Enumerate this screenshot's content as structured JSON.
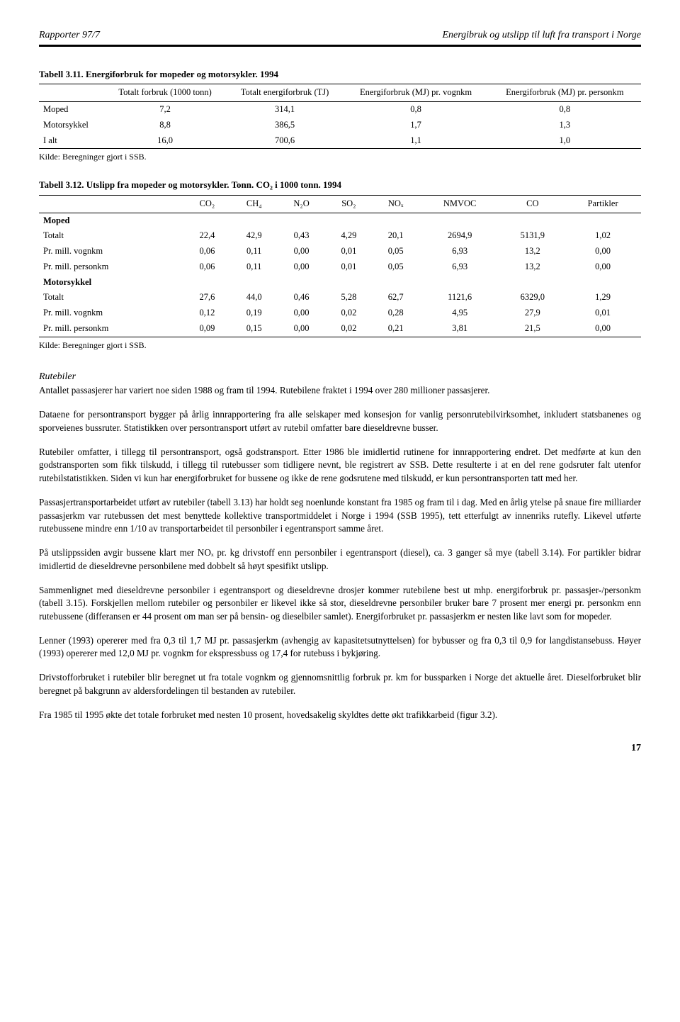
{
  "header": {
    "left": "Rapporter 97/7",
    "right": "Energibruk og utslipp til luft fra transport i Norge"
  },
  "table1": {
    "title": "Tabell 3.11. Energiforbruk for mopeder og motorsykler. 1994",
    "headers": [
      "",
      "Totalt forbruk (1000 tonn)",
      "Totalt energiforbruk (TJ)",
      "Energiforbruk (MJ) pr. vognkm",
      "Energiforbruk (MJ) pr. personkm"
    ],
    "rows": [
      [
        "Moped",
        "7,2",
        "314,1",
        "0,8",
        "0,8"
      ],
      [
        "Motorsykkel",
        "8,8",
        "386,5",
        "1,7",
        "1,3"
      ],
      [
        "I alt",
        "16,0",
        "700,6",
        "1,1",
        "1,0"
      ]
    ],
    "source": "Kilde: Beregninger gjort i SSB."
  },
  "table2": {
    "title": "Tabell 3.12. Utslipp fra mopeder og motorsykler. Tonn. CO₂ i 1000 tonn. 1994",
    "headers": [
      "",
      "CO₂",
      "CH₄",
      "N₂O",
      "SO₂",
      "NOₓ",
      "NMVOC",
      "CO",
      "Partikler"
    ],
    "rows": [
      [
        "Moped",
        "",
        "",
        "",
        "",
        "",
        "",
        "",
        ""
      ],
      [
        "Totalt",
        "22,4",
        "42,9",
        "0,43",
        "4,29",
        "20,1",
        "2694,9",
        "5131,9",
        "1,02"
      ],
      [
        "Pr. mill. vognkm",
        "0,06",
        "0,11",
        "0,00",
        "0,01",
        "0,05",
        "6,93",
        "13,2",
        "0,00"
      ],
      [
        "Pr. mill. personkm",
        "0,06",
        "0,11",
        "0,00",
        "0,01",
        "0,05",
        "6,93",
        "13,2",
        "0,00"
      ],
      [
        "Motorsykkel",
        "",
        "",
        "",
        "",
        "",
        "",
        "",
        ""
      ],
      [
        "Totalt",
        "27,6",
        "44,0",
        "0,46",
        "5,28",
        "62,7",
        "1121,6",
        "6329,0",
        "1,29"
      ],
      [
        "Pr. mill. vognkm",
        "0,12",
        "0,19",
        "0,00",
        "0,02",
        "0,28",
        "4,95",
        "27,9",
        "0,01"
      ],
      [
        "Pr. mill. personkm",
        "0,09",
        "0,15",
        "0,00",
        "0,02",
        "0,21",
        "3,81",
        "21,5",
        "0,00"
      ]
    ],
    "bold_rows": [
      0,
      4
    ],
    "source": "Kilde: Beregninger gjort i SSB."
  },
  "section_heading": "Rutebiler",
  "paragraphs": [
    "Antallet passasjerer har variert noe siden 1988 og fram til 1994. Rutebilene fraktet i 1994 over 280 millioner passasjerer.",
    "Dataene for persontransport bygger på årlig innrapportering fra alle selskaper med konsesjon for vanlig personrutebilvirksomhet, inkludert statsbanenes og sporveienes bussruter. Statistikken over persontransport utført av rutebil omfatter bare dieseldrevne busser.",
    "Rutebiler omfatter, i tillegg til persontransport, også godstransport. Etter 1986 ble imidlertid rutinene for innrapportering endret. Det medførte at kun den godstransporten som fikk tilskudd, i tillegg til rutebusser som tidligere nevnt, ble registrert av SSB. Dette resulterte i at en del rene godsruter falt utenfor rutebilstatistikken. Siden vi kun har energiforbruket for bussene og ikke de rene godsrutene med tilskudd, er kun persontransporten tatt med her.",
    "Passasjertransportarbeidet utført av rutebiler (tabell 3.13) har holdt seg noenlunde konstant fra 1985 og fram til i dag. Med en årlig ytelse på snaue fire milliarder passasjerkm var rutebussen det mest benyttede kollektive transportmiddelet i Norge i 1994 (SSB 1995), tett etterfulgt av innenriks rutefly. Likevel utførte rutebussene mindre enn 1/10 av transportarbeidet til personbiler i egentransport samme året.",
    "På utslippssiden avgir bussene klart mer NOₓ pr. kg drivstoff enn personbiler i egentransport (diesel), ca. 3 ganger så mye (tabell 3.14). For partikler bidrar imidlertid de dieseldrevne personbilene med dobbelt så høyt spesifikt utslipp.",
    "Sammenlignet med dieseldrevne personbiler i egentransport og dieseldrevne drosjer kommer rutebilene best ut mhp. energiforbruk pr. passasjer-/personkm (tabell 3.15). Forskjellen mellom rutebiler og personbiler er likevel ikke så stor, dieseldrevne personbiler bruker bare 7 prosent mer energi pr. personkm enn rutebussene (differansen er 44 prosent om man ser på bensin- og dieselbiler samlet). Energiforbruket pr. passasjerkm er nesten like lavt som for mopeder.",
    "Lenner (1993) opererer med fra 0,3 til 1,7 MJ pr. passasjerkm (avhengig av kapasitetsutnyttelsen) for bybusser og fra 0,3 til 0,9 for langdistansebuss. Høyer (1993) opererer med 12,0 MJ pr. vognkm for ekspressbuss og 17,4 for rutebuss i bykjøring.",
    "Drivstofforbruket i rutebiler blir beregnet ut fra totale vognkm og gjennomsnittlig forbruk pr. km for bussparken i Norge det aktuelle året. Dieselforbruket blir beregnet på bakgrunn av aldersfordelingen til bestanden av rutebiler.",
    "Fra 1985 til 1995 økte det totale forbruket med nesten 10 prosent, hovedsakelig skyldtes dette økt trafikkarbeid (figur 3.2)."
  ],
  "page_number": "17"
}
